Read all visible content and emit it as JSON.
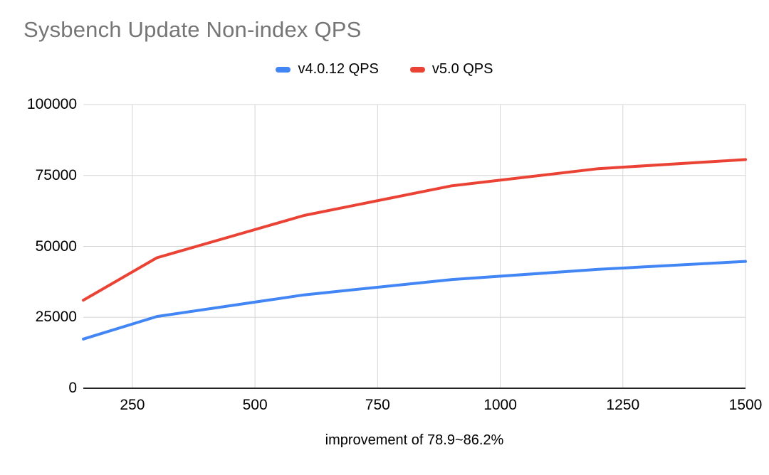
{
  "title": "Sysbench Update Non-index QPS",
  "caption": "improvement of 78.9~86.2%",
  "colors": {
    "title_text": "#757575",
    "tick_text": "#000000",
    "caption_text": "#000000",
    "grid": "#d6d6d6",
    "axis": "#222222",
    "background": "#ffffff"
  },
  "chart_data": {
    "type": "line",
    "title": "Sysbench Update Non-index QPS",
    "xlabel": "",
    "ylabel": "",
    "x": [
      150,
      300,
      600,
      900,
      1200,
      1500
    ],
    "xlim": [
      150,
      1500
    ],
    "ylim": [
      0,
      100000
    ],
    "x_ticks": [
      250,
      500,
      750,
      1000,
      1250,
      1500
    ],
    "y_ticks": [
      0,
      25000,
      50000,
      75000,
      100000
    ],
    "grid": true,
    "legend_position": "top-center",
    "series": [
      {
        "name": "v4.0.12 QPS",
        "color": "#4285F4",
        "values": [
          17350,
          25300,
          32900,
          38300,
          41900,
          44700
        ]
      },
      {
        "name": "v5.0 QPS",
        "color": "#EA4335",
        "values": [
          31040,
          46000,
          60900,
          71320,
          77400,
          80600
        ]
      }
    ],
    "annotation": "improvement of 78.9~86.2%"
  }
}
